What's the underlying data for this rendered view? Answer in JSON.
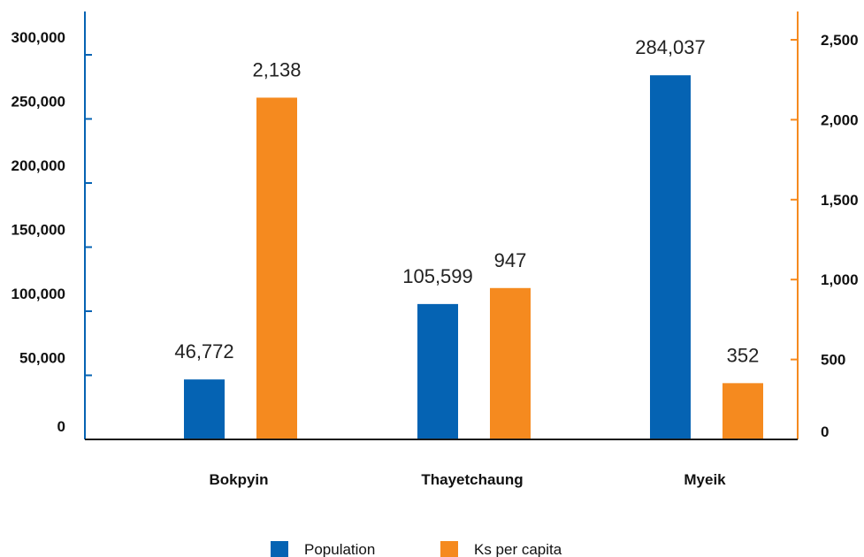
{
  "chart_data": {
    "type": "bar",
    "categories": [
      "Bokpyin",
      "Thayetchaung",
      "Myeik"
    ],
    "series": [
      {
        "name": "Population",
        "axis": "left",
        "color": "#0563b3",
        "values": [
          46772,
          105599,
          284037
        ],
        "labels": [
          "46,772",
          "105,599",
          "284,037"
        ]
      },
      {
        "name": "Ks per capita",
        "axis": "right",
        "color": "#f58a1f",
        "values": [
          2138,
          947,
          352
        ],
        "labels": [
          "2,138",
          "947",
          "352"
        ]
      }
    ],
    "left_axis": {
      "ylim": [
        0,
        300000
      ],
      "color": "#0563b3",
      "ticks": [
        {
          "value": 0,
          "label": "0"
        },
        {
          "value": 50000,
          "label": "50,000"
        },
        {
          "value": 100000,
          "label": "100,000"
        },
        {
          "value": 150000,
          "label": "150,000"
        },
        {
          "value": 200000,
          "label": "200,000"
        },
        {
          "value": 250000,
          "label": "250,000"
        },
        {
          "value": 300000,
          "label": "300,000"
        }
      ]
    },
    "right_axis": {
      "ylim": [
        0,
        2500
      ],
      "color": "#f58a1f",
      "ticks": [
        {
          "value": 0,
          "label": "0"
        },
        {
          "value": 500,
          "label": "500"
        },
        {
          "value": 1000,
          "label": "1,000"
        },
        {
          "value": 1500,
          "label": "1,500"
        },
        {
          "value": 2000,
          "label": "2,000"
        },
        {
          "value": 2500,
          "label": "2,500"
        }
      ]
    },
    "grid": false,
    "legend_position": "bottom-center"
  }
}
